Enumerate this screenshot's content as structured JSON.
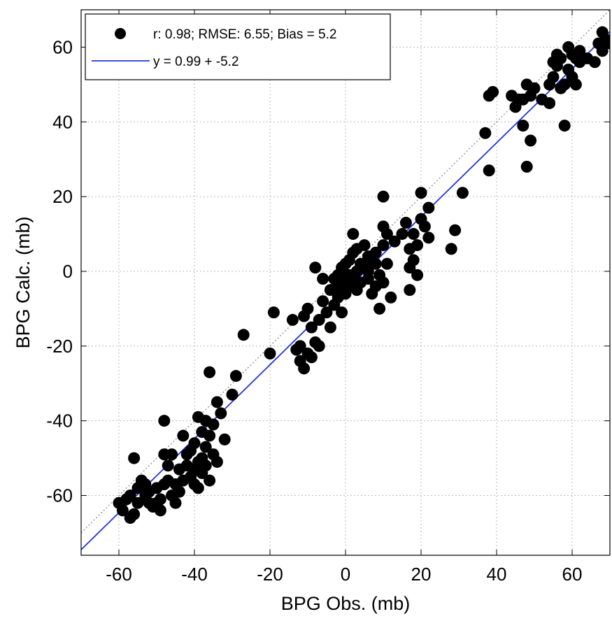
{
  "chart_data": {
    "type": "scatter",
    "xlabel": "BPG Obs. (mb)",
    "ylabel": "BPG Calc. (mb)",
    "xlim": [
      -70,
      70
    ],
    "ylim": [
      -76,
      70
    ],
    "xticks": [
      -60,
      -40,
      -20,
      0,
      20,
      40,
      60
    ],
    "yticks": [
      -60,
      -40,
      -20,
      0,
      20,
      40,
      60
    ],
    "grid": true,
    "legend_position": "top-left",
    "legend": [
      {
        "kind": "marker",
        "label": "r: 0.98; RMSE: 6.55; Bias = 5.2"
      },
      {
        "kind": "line",
        "label": "y = 0.99 + -5.2"
      }
    ],
    "colors": {
      "points": "#000000",
      "fit_line": "#2233dd",
      "reference_line": "#999999",
      "grid": "#bbbbbb"
    },
    "fit_line": {
      "slope": 0.99,
      "intercept": -5.2
    },
    "reference_line": {
      "slope": 1,
      "intercept": 0,
      "style": "dotted"
    },
    "series": [
      {
        "points": [
          [
            -60,
            -62
          ],
          [
            -59,
            -64
          ],
          [
            -58,
            -61
          ],
          [
            -57,
            -66
          ],
          [
            -57,
            -60
          ],
          [
            -56,
            -65
          ],
          [
            -56,
            -50
          ],
          [
            -55,
            -58
          ],
          [
            -55,
            -62
          ],
          [
            -54,
            -56
          ],
          [
            -53,
            -60
          ],
          [
            -53,
            -57
          ],
          [
            -52,
            -59
          ],
          [
            -52,
            -62
          ],
          [
            -51,
            -63
          ],
          [
            -50,
            -62
          ],
          [
            -50,
            -58
          ],
          [
            -49,
            -64
          ],
          [
            -49,
            -61
          ],
          [
            -48,
            -57
          ],
          [
            -48,
            -49
          ],
          [
            -48,
            -40
          ],
          [
            -47,
            -52
          ],
          [
            -47,
            -56
          ],
          [
            -46,
            -60
          ],
          [
            -46,
            -49
          ],
          [
            -45,
            -57
          ],
          [
            -45,
            -62
          ],
          [
            -44,
            -53
          ],
          [
            -44,
            -59
          ],
          [
            -43,
            -44
          ],
          [
            -43,
            -56
          ],
          [
            -42,
            -49
          ],
          [
            -42,
            -52
          ],
          [
            -41,
            -55
          ],
          [
            -41,
            -48
          ],
          [
            -40,
            -57
          ],
          [
            -40,
            -53
          ],
          [
            -40,
            -46
          ],
          [
            -39,
            -39
          ],
          [
            -39,
            -51
          ],
          [
            -39,
            -58
          ],
          [
            -38,
            -50
          ],
          [
            -38,
            -43
          ],
          [
            -38,
            -54
          ],
          [
            -37,
            -40
          ],
          [
            -37,
            -52
          ],
          [
            -37,
            -47
          ],
          [
            -36,
            -44
          ],
          [
            -36,
            -27
          ],
          [
            -36,
            -56
          ],
          [
            -35,
            -49
          ],
          [
            -35,
            -41
          ],
          [
            -34,
            -35
          ],
          [
            -34,
            -51
          ],
          [
            -33,
            -38
          ],
          [
            -32,
            -45
          ],
          [
            -30,
            -33
          ],
          [
            -29,
            -28
          ],
          [
            -27,
            -17
          ],
          [
            -20,
            -22
          ],
          [
            -19,
            -11
          ],
          [
            -14,
            -13
          ],
          [
            -13,
            -21
          ],
          [
            -12,
            -24
          ],
          [
            -12,
            -20
          ],
          [
            -11,
            -26
          ],
          [
            -11,
            -12
          ],
          [
            -10,
            -22
          ],
          [
            -10,
            -10
          ],
          [
            -9,
            -15
          ],
          [
            -9,
            -23
          ],
          [
            -8,
            1
          ],
          [
            -8,
            -19
          ],
          [
            -7,
            -13
          ],
          [
            -7,
            -20
          ],
          [
            -6,
            -2
          ],
          [
            -6,
            -8
          ],
          [
            -5,
            -11
          ],
          [
            -4,
            -15
          ],
          [
            -4,
            -5
          ],
          [
            -3,
            -2
          ],
          [
            -3,
            -9
          ],
          [
            -2,
            -4
          ],
          [
            -2,
            -1
          ],
          [
            -2,
            -7
          ],
          [
            -1,
            -3
          ],
          [
            -1,
            -11
          ],
          [
            -1,
            1
          ],
          [
            0,
            -2
          ],
          [
            0,
            -6
          ],
          [
            0,
            2
          ],
          [
            1,
            -1
          ],
          [
            1,
            -4
          ],
          [
            1,
            3
          ],
          [
            2,
            10
          ],
          [
            2,
            5
          ],
          [
            2,
            -2
          ],
          [
            3,
            0
          ],
          [
            3,
            -5
          ],
          [
            3,
            6
          ],
          [
            4,
            2
          ],
          [
            4,
            -3
          ],
          [
            5,
            7
          ],
          [
            5,
            1
          ],
          [
            6,
            4
          ],
          [
            6,
            -2
          ],
          [
            6,
            0
          ],
          [
            7,
            -6
          ],
          [
            7,
            3
          ],
          [
            8,
            -4
          ],
          [
            8,
            5
          ],
          [
            8,
            2
          ],
          [
            9,
            -10
          ],
          [
            9,
            -1
          ],
          [
            10,
            20
          ],
          [
            10,
            12
          ],
          [
            10,
            -3
          ],
          [
            10,
            7
          ],
          [
            11,
            2
          ],
          [
            11,
            10
          ],
          [
            12,
            -7
          ],
          [
            13,
            8
          ],
          [
            15,
            10
          ],
          [
            16,
            13
          ],
          [
            17,
            -5
          ],
          [
            17,
            6
          ],
          [
            17,
            1
          ],
          [
            18,
            3
          ],
          [
            18,
            10
          ],
          [
            19,
            -1
          ],
          [
            19,
            7
          ],
          [
            20,
            21
          ],
          [
            20,
            14
          ],
          [
            21,
            12
          ],
          [
            22,
            17
          ],
          [
            22,
            9
          ],
          [
            28,
            6
          ],
          [
            29,
            11
          ],
          [
            31,
            21
          ],
          [
            37,
            37
          ],
          [
            38,
            27
          ],
          [
            38,
            47
          ],
          [
            39,
            48
          ],
          [
            44,
            47
          ],
          [
            45,
            44
          ],
          [
            46,
            46
          ],
          [
            47,
            39
          ],
          [
            47,
            46
          ],
          [
            48,
            28
          ],
          [
            48,
            50
          ],
          [
            49,
            35
          ],
          [
            49,
            47
          ],
          [
            50,
            49
          ],
          [
            52,
            46
          ],
          [
            54,
            45
          ],
          [
            54,
            50
          ],
          [
            55,
            52
          ],
          [
            55,
            56
          ],
          [
            56,
            55
          ],
          [
            56,
            58
          ],
          [
            57,
            49
          ],
          [
            57,
            57
          ],
          [
            58,
            39
          ],
          [
            58,
            50
          ],
          [
            59,
            60
          ],
          [
            59,
            54
          ],
          [
            60,
            52
          ],
          [
            60,
            58
          ],
          [
            61,
            57
          ],
          [
            61,
            50
          ],
          [
            62,
            56
          ],
          [
            62,
            59
          ],
          [
            64,
            57
          ],
          [
            66,
            56
          ],
          [
            67,
            61
          ],
          [
            68,
            59
          ],
          [
            68,
            64
          ],
          [
            69,
            62
          ],
          [
            70,
            61
          ]
        ]
      }
    ]
  }
}
